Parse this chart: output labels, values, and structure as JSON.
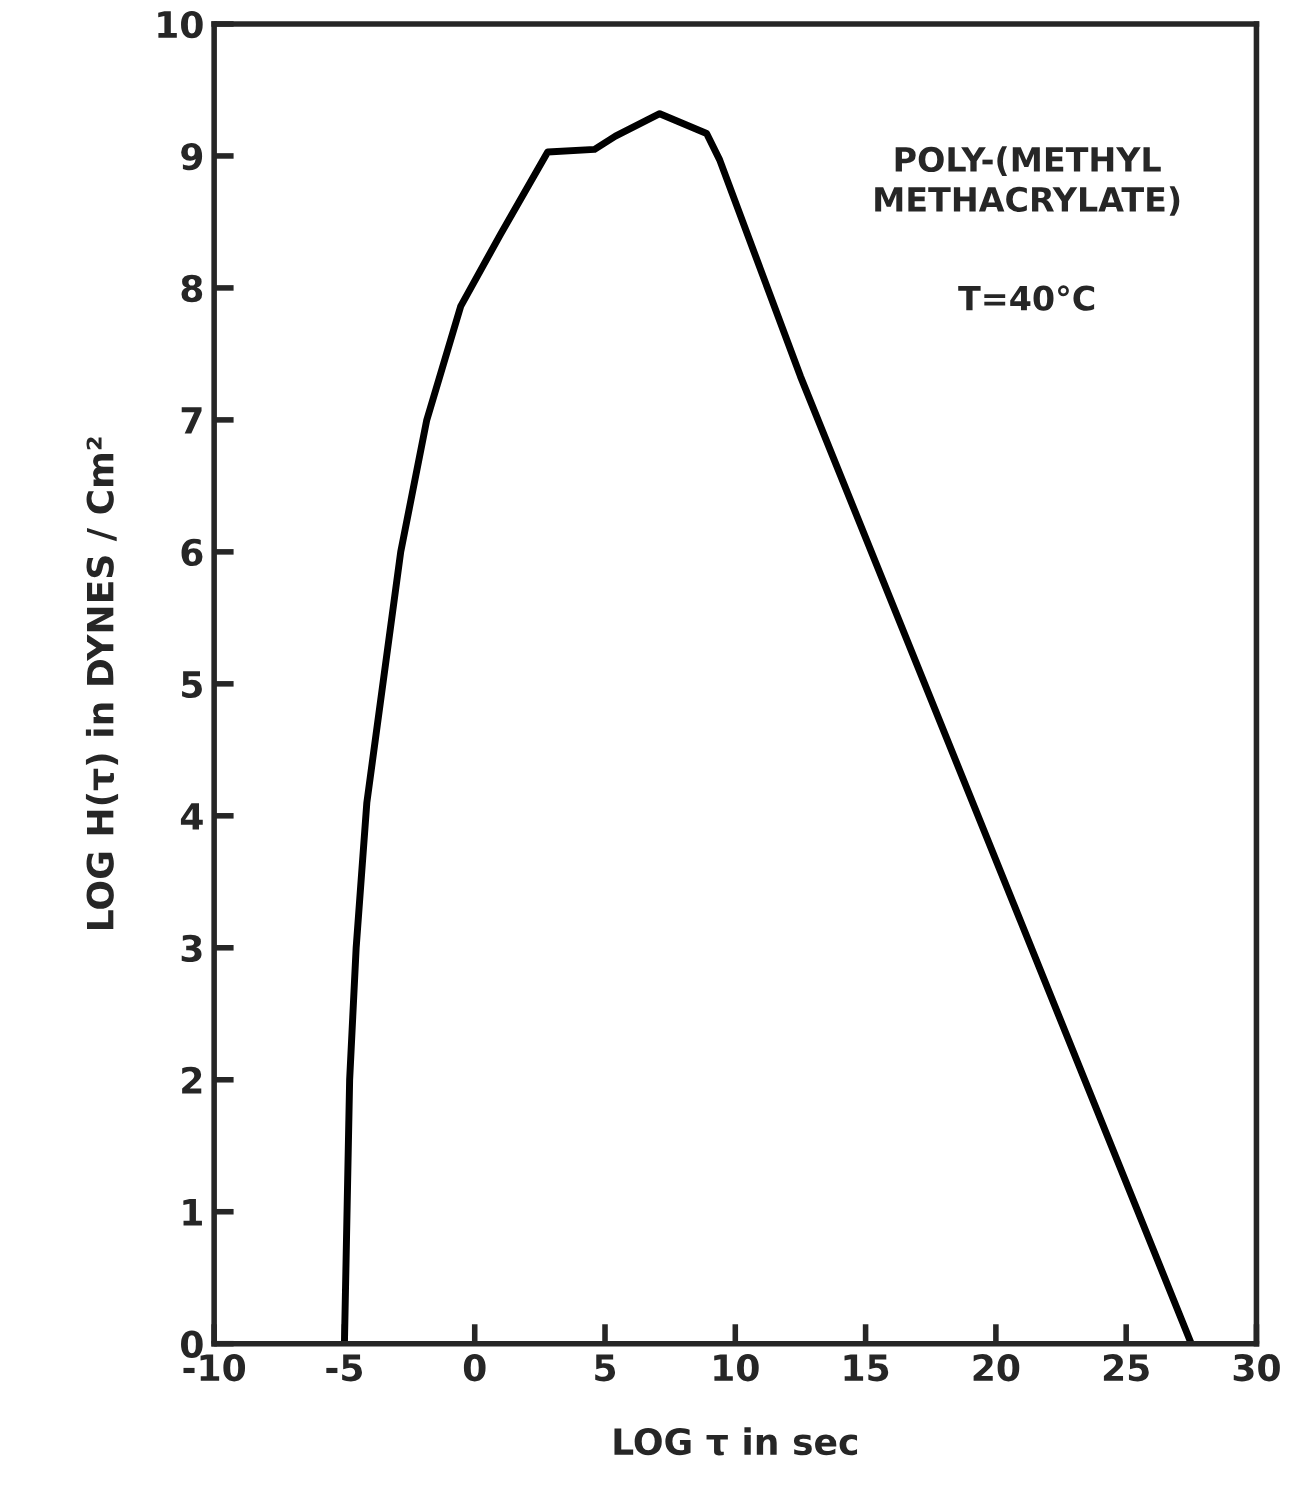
{
  "chart_data": {
    "type": "line",
    "xlabel": "LOG τ in sec",
    "ylabel": "LOG H(τ) in DYNES / Cm²",
    "annotations": [
      "POLY-(METHYL\nMETHACRYLATE)",
      "T=40°C"
    ],
    "x": [
      -5,
      -4.8,
      -4.55,
      -4.14,
      -2.84,
      -1.84,
      -0.54,
      1,
      2.8,
      4.6,
      5.4,
      7.1,
      8.9,
      9.4,
      12.5,
      27.5
    ],
    "series": [
      {
        "color": "#000000",
        "values": [
          0,
          2,
          3,
          4.1,
          6,
          7,
          7.86,
          8.41,
          9.03,
          9.05,
          9.15,
          9.32,
          9.17,
          8.97,
          7.33,
          0
        ]
      }
    ],
    "xlim": [
      -10,
      30
    ],
    "ylim": [
      0,
      10
    ],
    "xticks": [
      -10,
      -5,
      0,
      5,
      10,
      15,
      20,
      25,
      30
    ],
    "yticks": [
      0,
      1,
      2,
      3,
      4,
      5,
      6,
      7,
      8,
      9,
      10
    ],
    "grid": false,
    "legend": false,
    "marker": "none",
    "line_style": "solid"
  }
}
